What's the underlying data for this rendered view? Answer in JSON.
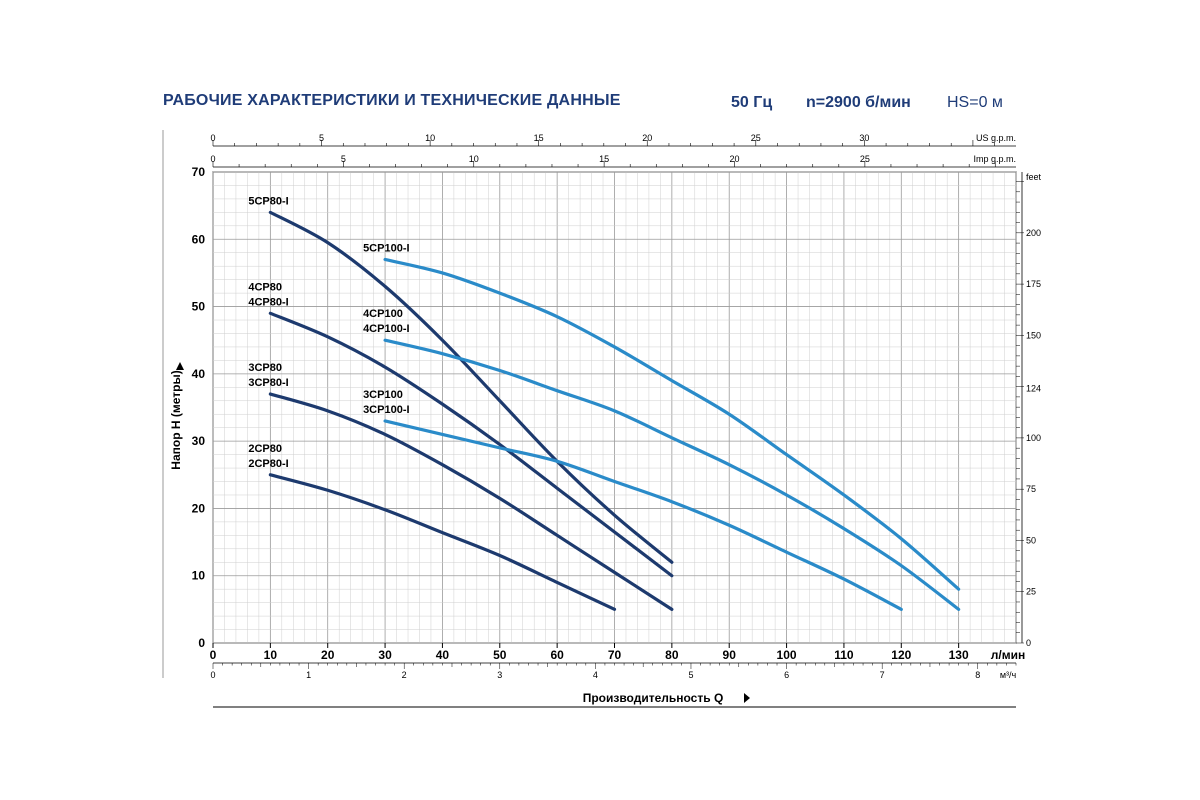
{
  "header": {
    "title": "РАБОЧИЕ ХАРАКТЕРИСТИКИ И ТЕХНИЧЕСКИЕ ДАННЫЕ",
    "frequency": "50 Гц",
    "speed": "n=2900 б/мин",
    "hs": "HS=0 м"
  },
  "chart_data": {
    "type": "line",
    "xlabel": "Производительность Q",
    "ylabel": "Напор H (метры)",
    "xlim": [
      0,
      140
    ],
    "ylim": [
      0,
      70
    ],
    "x_unit": "л/мин",
    "x_ticks": [
      0,
      10,
      20,
      30,
      40,
      50,
      60,
      70,
      80,
      90,
      100,
      110,
      120,
      130
    ],
    "y_ticks": [
      0,
      10,
      20,
      30,
      40,
      50,
      60,
      70
    ],
    "secondary_axes": {
      "us_gpm": {
        "unit": "US g.p.m.",
        "ticks": [
          0,
          5,
          10,
          15,
          20,
          25,
          30
        ]
      },
      "imp_gpm": {
        "unit": "Imp g.p.m.",
        "ticks": [
          0,
          5,
          10,
          15,
          20,
          25
        ]
      },
      "m3h": {
        "unit": "м³/ч",
        "ticks": [
          0,
          1,
          2,
          3,
          4,
          5,
          6,
          7,
          8
        ]
      },
      "feet": {
        "unit": "feet",
        "ticks": [
          0,
          25,
          50,
          75,
          100,
          124,
          150,
          175,
          200
        ]
      }
    },
    "grid": true,
    "series": [
      {
        "name": "5CP80-I",
        "label_lines": [
          "5CP80-I"
        ],
        "color": "#1d3a6e",
        "x": [
          10,
          20,
          30,
          40,
          50,
          60,
          70,
          80
        ],
        "y": [
          64,
          59.5,
          53,
          45,
          36,
          27,
          19,
          12
        ]
      },
      {
        "name": "4CP80 / 4CP80-I",
        "label_lines": [
          "4CP80",
          "4CP80-I"
        ],
        "color": "#1d3a6e",
        "x": [
          10,
          20,
          30,
          40,
          50,
          60,
          70,
          80
        ],
        "y": [
          49,
          45.5,
          41,
          35.5,
          29.5,
          23,
          16.5,
          10
        ]
      },
      {
        "name": "3CP80 / 3CP80-I",
        "label_lines": [
          "3CP80",
          "3CP80-I"
        ],
        "color": "#1d3a6e",
        "x": [
          10,
          20,
          30,
          40,
          50,
          60,
          70,
          80
        ],
        "y": [
          37,
          34.5,
          31,
          26.5,
          21.5,
          16,
          10.5,
          5
        ]
      },
      {
        "name": "2CP80 / 2CP80-I",
        "label_lines": [
          "2CP80",
          "2CP80-I"
        ],
        "color": "#1d3a6e",
        "x": [
          10,
          20,
          30,
          40,
          50,
          60,
          70
        ],
        "y": [
          25,
          22.7,
          19.8,
          16.4,
          13,
          9,
          5
        ]
      },
      {
        "name": "5CP100-I",
        "label_lines": [
          "5CP100-I"
        ],
        "color": "#2a8bc9",
        "x": [
          30,
          40,
          50,
          60,
          70,
          80,
          90,
          100,
          110,
          120,
          130
        ],
        "y": [
          57,
          55,
          52,
          48.5,
          44,
          39,
          34,
          28,
          22,
          15.5,
          8
        ]
      },
      {
        "name": "4CP100 / 4CP100-I",
        "label_lines": [
          "4CP100",
          "4CP100-I"
        ],
        "color": "#2a8bc9",
        "x": [
          30,
          40,
          50,
          60,
          70,
          80,
          90,
          100,
          110,
          120,
          130
        ],
        "y": [
          45,
          43,
          40.5,
          37.5,
          34.5,
          30.5,
          26.5,
          22,
          17,
          11.5,
          5
        ]
      },
      {
        "name": "3CP100 / 3CP100-I",
        "label_lines": [
          "3CP100",
          "3CP100-I"
        ],
        "color": "#2a8bc9",
        "x": [
          30,
          40,
          50,
          60,
          70,
          80,
          90,
          100,
          110,
          120
        ],
        "y": [
          33,
          31,
          29,
          27,
          24,
          21,
          17.5,
          13.5,
          9.5,
          5
        ]
      }
    ]
  }
}
